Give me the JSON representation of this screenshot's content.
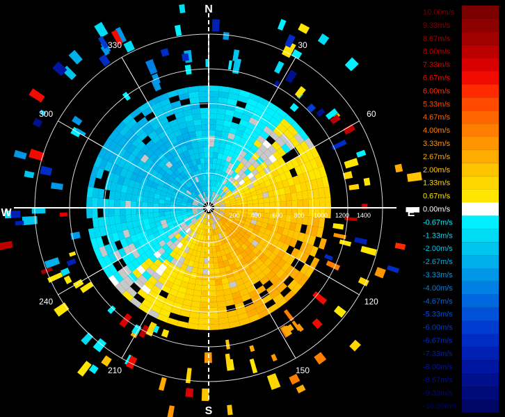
{
  "chart_data": {
    "type": "heatmap",
    "description_kind": "polar-velocity-scan",
    "compass": {
      "north": "N",
      "south": "S",
      "east": "E",
      "west": "W"
    },
    "bearing_labels": [
      "30",
      "60",
      "120",
      "150",
      "210",
      "240",
      "300",
      "330"
    ],
    "range_labels": [
      "200",
      "400",
      "600",
      "800",
      "1000",
      "1200",
      "1400"
    ],
    "colorbar": [
      {
        "label": "10.00m/s",
        "color": "#7a0000"
      },
      {
        "label": "9.33m/s",
        "color": "#8c0000"
      },
      {
        "label": "8.67m/s",
        "color": "#a00000"
      },
      {
        "label": "8.00m/s",
        "color": "#bc0000"
      },
      {
        "label": "7.33m/s",
        "color": "#d80000"
      },
      {
        "label": "6.67m/s",
        "color": "#f00a00"
      },
      {
        "label": "6.00m/s",
        "color": "#ff2a00"
      },
      {
        "label": "5.33m/s",
        "color": "#ff4a00"
      },
      {
        "label": "4.67m/s",
        "color": "#ff6600"
      },
      {
        "label": "4.00m/s",
        "color": "#ff7e00"
      },
      {
        "label": "3.33m/s",
        "color": "#ff9600"
      },
      {
        "label": "2.67m/s",
        "color": "#ffac00"
      },
      {
        "label": "2.00m/s",
        "color": "#ffc400"
      },
      {
        "label": "1.33m/s",
        "color": "#ffd600"
      },
      {
        "label": "0.67m/s",
        "color": "#ffe600"
      },
      {
        "label": "0.00m/s",
        "color": "#ffffff"
      },
      {
        "label": "-0.67m/s",
        "color": "#00f0ff"
      },
      {
        "label": "-1.33m/s",
        "color": "#00dcf4"
      },
      {
        "label": "-2.00m/s",
        "color": "#00c6ee"
      },
      {
        "label": "-2.67m/s",
        "color": "#00b0ea"
      },
      {
        "label": "-3.33m/s",
        "color": "#0098e6"
      },
      {
        "label": "-4.00m/s",
        "color": "#0080e2"
      },
      {
        "label": "-4.67m/s",
        "color": "#0068de"
      },
      {
        "label": "-5.33m/s",
        "color": "#0050d8"
      },
      {
        "label": "-6.00m/s",
        "color": "#003cd0"
      },
      {
        "label": "-6.67m/s",
        "color": "#002cc4"
      },
      {
        "label": "-7.33m/s",
        "color": "#0020b4"
      },
      {
        "label": "-8.00m/s",
        "color": "#0016a0"
      },
      {
        "label": "-8.67m/s",
        "color": "#00108c"
      },
      {
        "label": "-9.33m/s",
        "color": "#000a78"
      },
      {
        "label": "-10.00m/s",
        "color": "#000664"
      }
    ],
    "approx_field": {
      "northwest_half": "approaching, about -0.67 to -2.67 m/s",
      "southeast_half": "receding, about 1.33 to 3.33 m/s",
      "outer_rings": "sparse scattered returns"
    }
  }
}
